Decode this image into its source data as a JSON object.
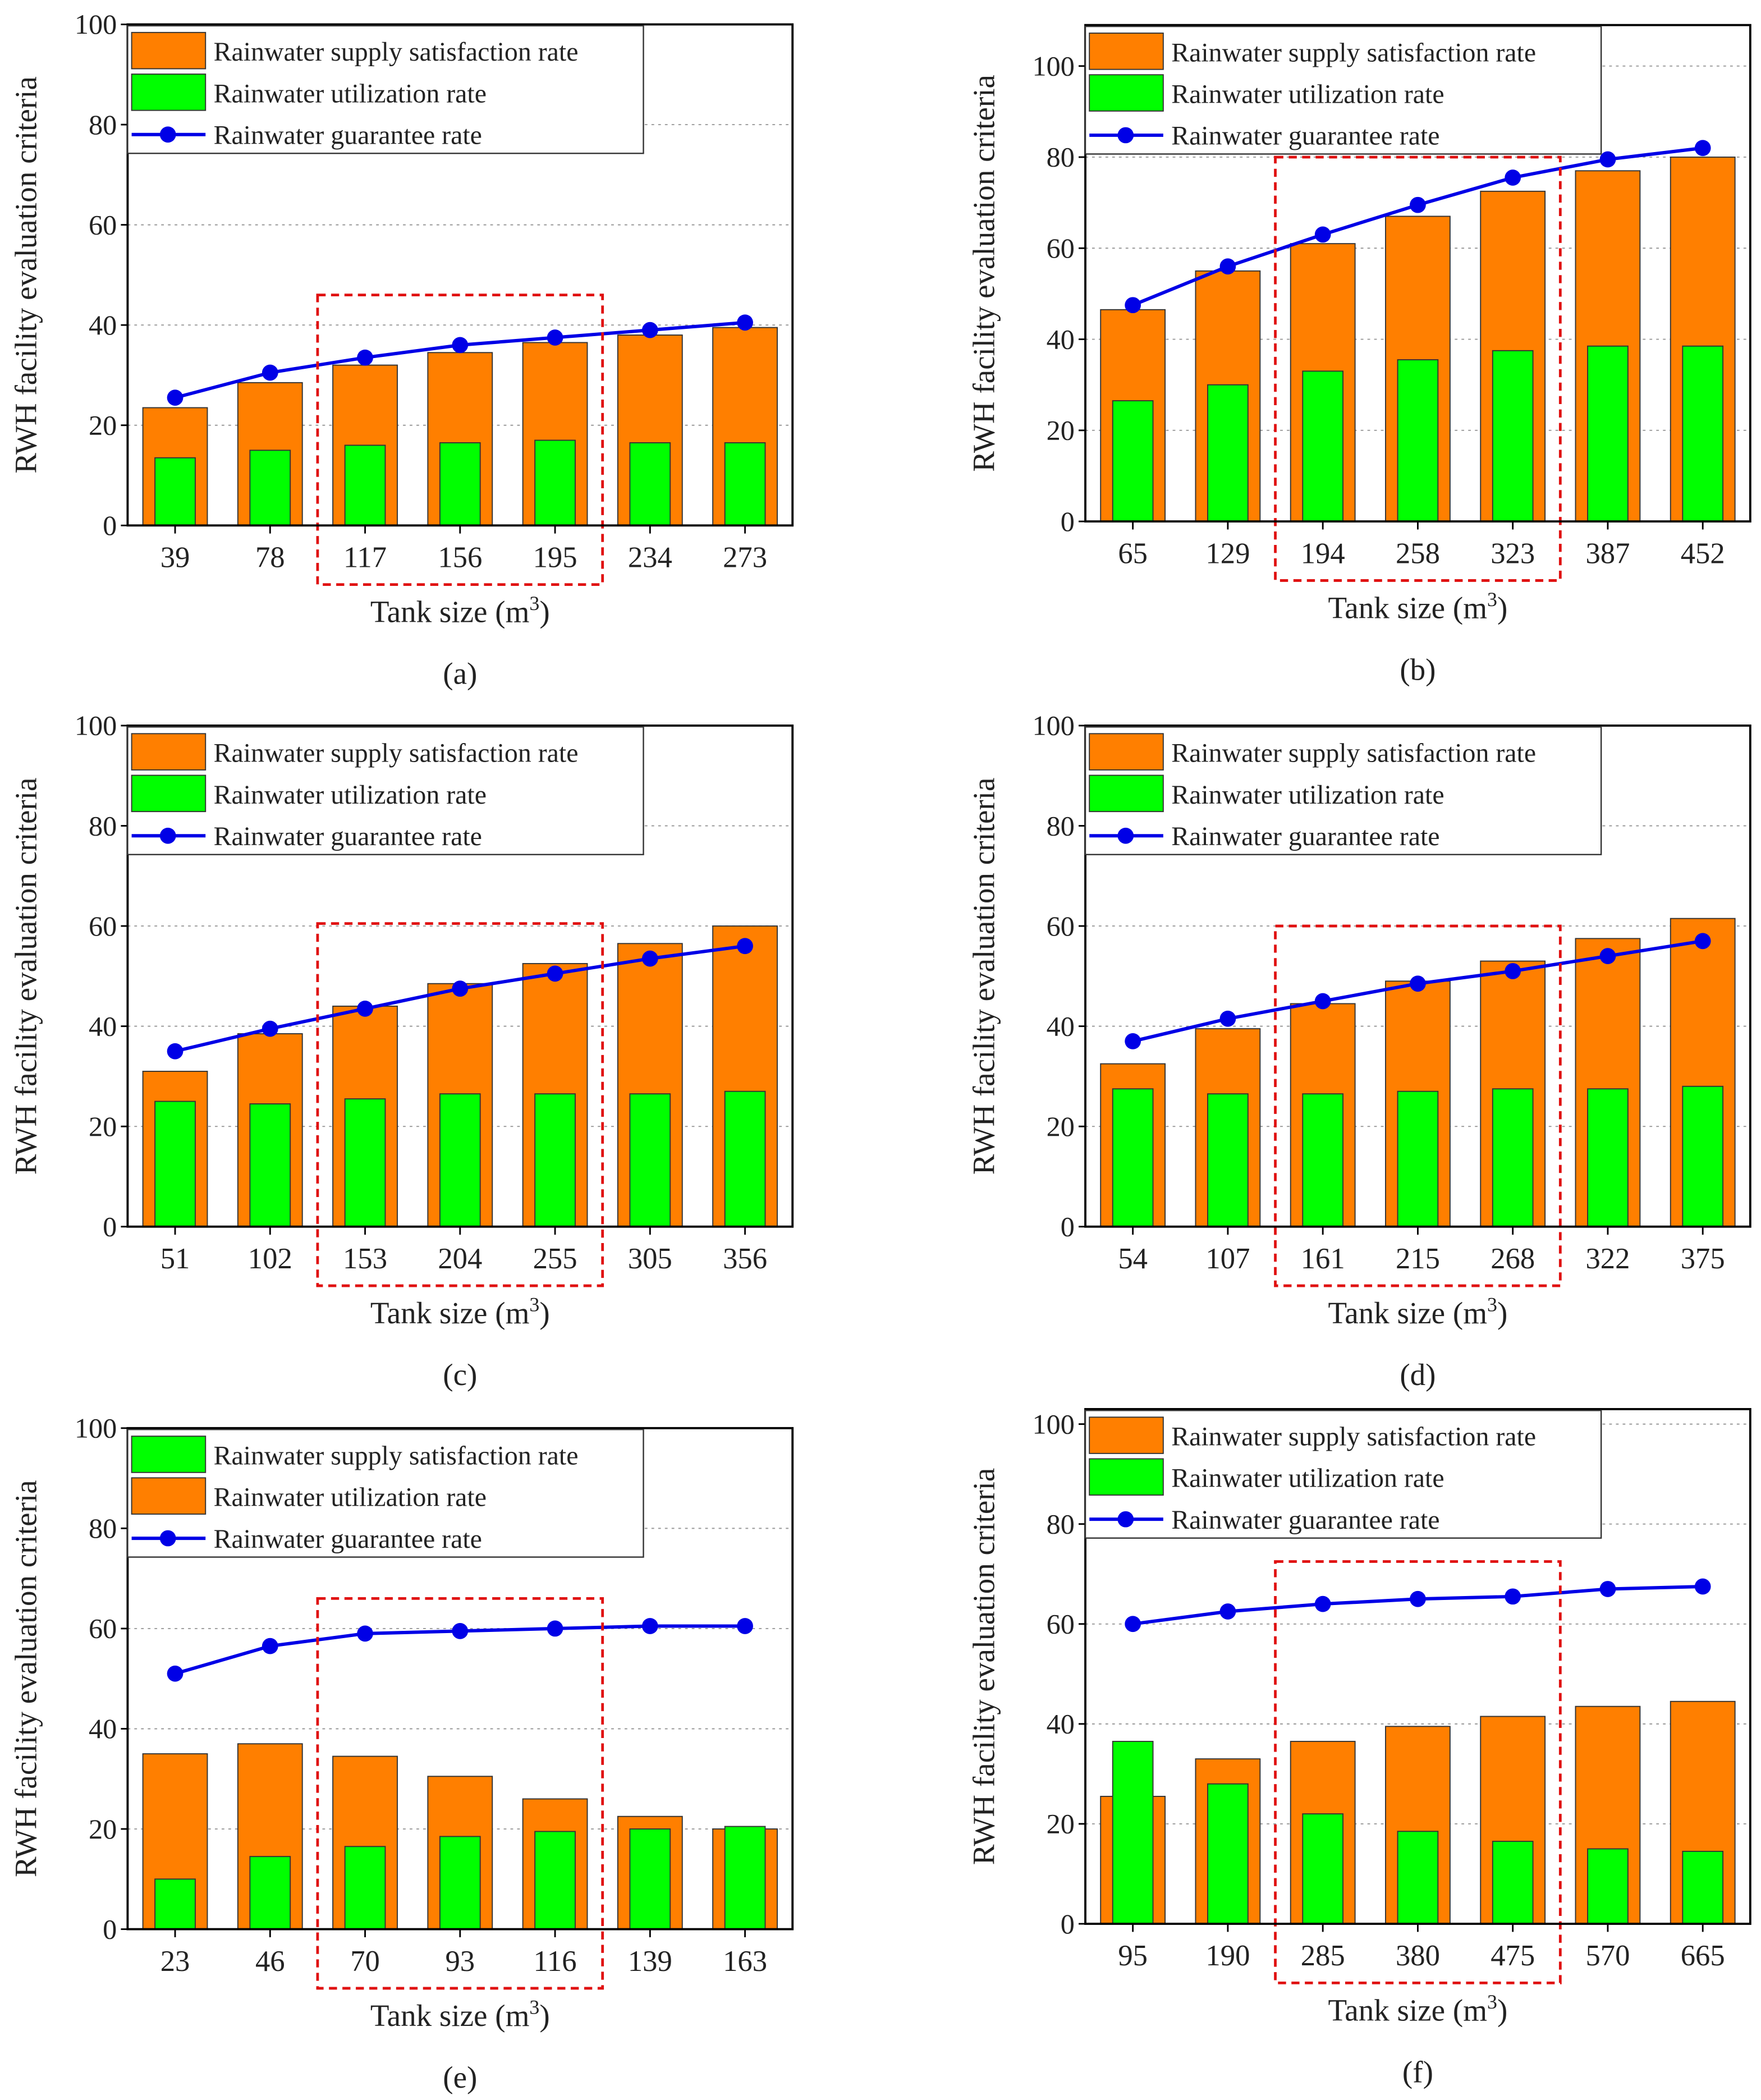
{
  "chart_data": [
    {
      "panel_label": "(a)",
      "type": "bar+line",
      "ylabel": "RWH facility evaluation criteria",
      "xlabel": "Tank size (m",
      "xlabel_sup": "3",
      "xlabel_end": ")",
      "ylim": [
        0,
        100
      ],
      "yticks": [
        0,
        20,
        40,
        60,
        80,
        100
      ],
      "grid": "horizontal-dotted",
      "legend": "top-left",
      "categories": [
        "39",
        "78",
        "117",
        "156",
        "195",
        "234",
        "273"
      ],
      "highlight": {
        "from_index": 2,
        "to_index": 4,
        "top_value": 46
      },
      "series": [
        {
          "name": "Rainwater supply satisfaction rate",
          "kind": "bar-wide",
          "color": "#ff7f00",
          "values": [
            23.5,
            28.5,
            32,
            34.5,
            36.5,
            38,
            39.5
          ]
        },
        {
          "name": "Rainwater utilization rate",
          "kind": "bar-narrow",
          "color": "#00ff00",
          "values": [
            13.5,
            15,
            16,
            16.5,
            17,
            16.5,
            16.5
          ]
        },
        {
          "name": "Rainwater guarantee rate",
          "kind": "line",
          "color": "#0000e6",
          "values": [
            25.5,
            30.5,
            33.5,
            36,
            37.5,
            39,
            40.5
          ]
        }
      ]
    },
    {
      "panel_label": "(b)",
      "type": "bar+line",
      "ylabel": "RWH facility evaluation criteria",
      "xlabel": "Tank size (m",
      "xlabel_sup": "3",
      "xlabel_end": ")",
      "ylim": [
        0,
        109
      ],
      "yticks": [
        0,
        20,
        40,
        60,
        80,
        100
      ],
      "grid": "horizontal-dotted",
      "legend": "top-left",
      "categories": [
        "65",
        "129",
        "194",
        "258",
        "323",
        "387",
        "452"
      ],
      "highlight": {
        "from_index": 2,
        "to_index": 4,
        "top_value": 80
      },
      "series": [
        {
          "name": "Rainwater supply satisfaction rate",
          "kind": "bar-wide",
          "color": "#ff7f00",
          "values": [
            46.5,
            55,
            61,
            67,
            72.5,
            77,
            80
          ]
        },
        {
          "name": "Rainwater utilization rate",
          "kind": "bar-narrow",
          "color": "#00ff00",
          "values": [
            26.5,
            30,
            33,
            35.5,
            37.5,
            38.5,
            38.5
          ]
        },
        {
          "name": "Rainwater guarantee rate",
          "kind": "line",
          "color": "#0000e6",
          "values": [
            47.5,
            56,
            63,
            69.5,
            75.5,
            79.5,
            82
          ]
        }
      ]
    },
    {
      "panel_label": "(c)",
      "type": "bar+line",
      "ylabel": "RWH facility evaluation criteria",
      "xlabel": "Tank size (m",
      "xlabel_sup": "3",
      "xlabel_end": ")",
      "ylim": [
        0,
        100
      ],
      "yticks": [
        0,
        20,
        40,
        60,
        80,
        100
      ],
      "grid": "horizontal-dotted",
      "legend": "top-left",
      "categories": [
        "51",
        "102",
        "153",
        "204",
        "255",
        "305",
        "356"
      ],
      "highlight": {
        "from_index": 2,
        "to_index": 4,
        "top_value": 60.5
      },
      "series": [
        {
          "name": "Rainwater supply satisfaction rate",
          "kind": "bar-wide",
          "color": "#ff7f00",
          "values": [
            31,
            38.5,
            44,
            48.5,
            52.5,
            56.5,
            60
          ]
        },
        {
          "name": "Rainwater utilization rate",
          "kind": "bar-narrow",
          "color": "#00ff00",
          "values": [
            25,
            24.5,
            25.5,
            26.5,
            26.5,
            26.5,
            27
          ]
        },
        {
          "name": "Rainwater guarantee rate",
          "kind": "line",
          "color": "#0000e6",
          "values": [
            35,
            39.5,
            43.5,
            47.5,
            50.5,
            53.5,
            56
          ]
        }
      ]
    },
    {
      "panel_label": "(d)",
      "type": "bar+line",
      "ylabel": "RWH facility evaluation criteria",
      "xlabel": "Tank size (m",
      "xlabel_sup": "3",
      "xlabel_end": ")",
      "ylim": [
        0,
        100
      ],
      "yticks": [
        0,
        20,
        40,
        60,
        80,
        100
      ],
      "grid": "horizontal-dotted",
      "legend": "top-left",
      "categories": [
        "54",
        "107",
        "161",
        "215",
        "268",
        "322",
        "375"
      ],
      "highlight": {
        "from_index": 2,
        "to_index": 4,
        "top_value": 60
      },
      "series": [
        {
          "name": "Rainwater supply satisfaction rate",
          "kind": "bar-wide",
          "color": "#ff7f00",
          "values": [
            32.5,
            39.5,
            44.5,
            49,
            53,
            57.5,
            61.5
          ]
        },
        {
          "name": "Rainwater utilization rate",
          "kind": "bar-narrow",
          "color": "#00ff00",
          "values": [
            27.5,
            26.5,
            26.5,
            27,
            27.5,
            27.5,
            28
          ]
        },
        {
          "name": "Rainwater guarantee rate",
          "kind": "line",
          "color": "#0000e6",
          "values": [
            37,
            41.5,
            45,
            48.5,
            51,
            54,
            57
          ]
        }
      ]
    },
    {
      "panel_label": "(e)",
      "type": "bar+line",
      "ylabel": "RWH facility evaluation criteria",
      "xlabel": "Tank size (m",
      "xlabel_sup": "3",
      "xlabel_end": ")",
      "ylim": [
        0,
        100
      ],
      "yticks": [
        0,
        20,
        40,
        60,
        80,
        100
      ],
      "grid": "horizontal-dotted",
      "legend": "top-left",
      "categories": [
        "23",
        "46",
        "70",
        "93",
        "116",
        "139",
        "163"
      ],
      "highlight": {
        "from_index": 2,
        "to_index": 4,
        "top_value": 66
      },
      "series": [
        {
          "name": "Rainwater supply satisfaction rate",
          "kind": "bar-narrow",
          "color": "#00ff00",
          "values": [
            10,
            14.5,
            16.5,
            18.5,
            19.5,
            20,
            20.5
          ]
        },
        {
          "name": "Rainwater utilization rate",
          "kind": "bar-wide",
          "color": "#ff7f00",
          "values": [
            35,
            37,
            34.5,
            30.5,
            26,
            22.5,
            20
          ]
        },
        {
          "name": "Rainwater guarantee rate",
          "kind": "line",
          "color": "#0000e6",
          "values": [
            51,
            56.5,
            59,
            59.5,
            60,
            60.5,
            60.5
          ]
        }
      ]
    },
    {
      "panel_label": "(f)",
      "type": "bar+line",
      "ylabel": "RWH facility evaluation criteria",
      "xlabel": "Tank size (m",
      "xlabel_sup": "3",
      "xlabel_end": ")",
      "ylim": [
        0,
        103
      ],
      "yticks": [
        0,
        20,
        40,
        60,
        80,
        100
      ],
      "grid": "horizontal-dotted",
      "legend": "top-left",
      "categories": [
        "95",
        "190",
        "285",
        "380",
        "475",
        "570",
        "665"
      ],
      "highlight": {
        "from_index": 2,
        "to_index": 4,
        "top_value": 72.5
      },
      "series": [
        {
          "name": "Rainwater supply satisfaction rate",
          "kind": "bar-wide",
          "color": "#ff7f00",
          "values": [
            25.5,
            33,
            36.5,
            39.5,
            41.5,
            43.5,
            44.5
          ]
        },
        {
          "name": "Rainwater utilization rate",
          "kind": "bar-narrow",
          "color": "#00ff00",
          "values": [
            36.5,
            28,
            22,
            18.5,
            16.5,
            15,
            14.5
          ]
        },
        {
          "name": "Rainwater guarantee rate",
          "kind": "line",
          "color": "#0000e6",
          "values": [
            60,
            62.5,
            64,
            65,
            65.5,
            67,
            67.5
          ]
        }
      ]
    }
  ]
}
